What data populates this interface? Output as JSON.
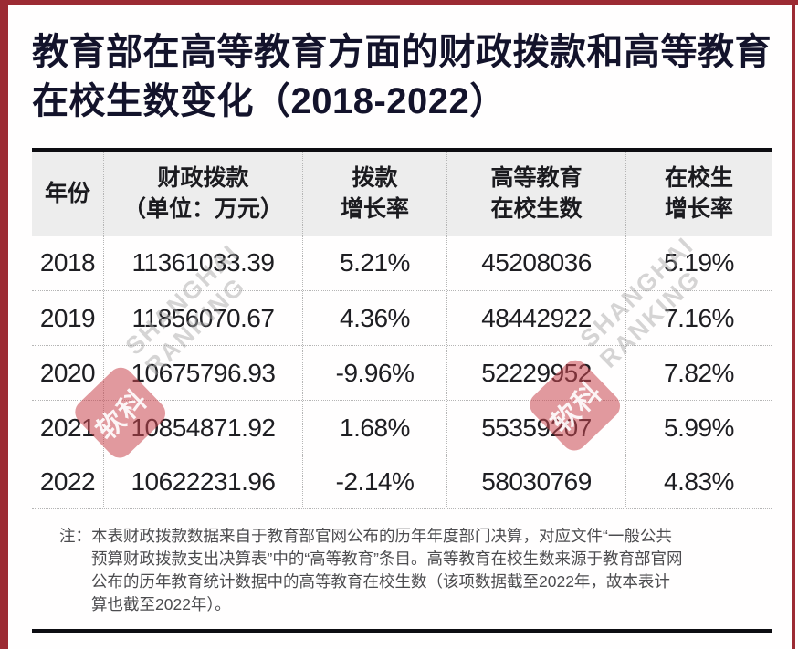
{
  "page": {
    "accent_red": "#9c2b33",
    "title_full": "教育部在高等教育方面的财政拨款和高等教育在校生数变化（2018-2022）",
    "title_line1": "教育部在高等教育方面的财政拨款和高等教育",
    "title_line2": "在校生数变化（2018-2022）"
  },
  "table": {
    "headers": [
      [
        "年份",
        ""
      ],
      [
        "财政拨款",
        "（单位：万元）"
      ],
      [
        "拨款",
        "增长率"
      ],
      [
        "高等教育",
        "在校生数"
      ],
      [
        "在校生",
        "增长率"
      ]
    ],
    "rows": [
      [
        "2018",
        "11361033.39",
        "5.21%",
        "45208036",
        "5.19%"
      ],
      [
        "2019",
        "11856070.67",
        "4.36%",
        "48442922",
        "7.16%"
      ],
      [
        "2020",
        "10675796.93",
        "-9.96%",
        "52229952",
        "7.82%"
      ],
      [
        "2021",
        "10854871.92",
        "1.68%",
        "55359207",
        "5.99%"
      ],
      [
        "2022",
        "10622231.96",
        "-2.14%",
        "58030769",
        "4.83%"
      ]
    ]
  },
  "note": {
    "label": "注：",
    "lines": [
      "本表财政拨款数据来自于教育部官网公布的历年年度部门决算，对应文件“一般公共",
      "预算财政拨款支出决算表”中的“高等教育”条目。高等教育在校生数来源于教育部官网",
      "公布的历年教育统计数据中的高等教育在校生数（该项数据截至2022年，故本表计",
      "算也截至2022年）。"
    ]
  },
  "watermark": {
    "logo_text": "软科",
    "brand_line1": "SHANGHAI",
    "brand_line2": "RANKING"
  },
  "chart_data": {
    "type": "table",
    "title": "教育部在高等教育方面的财政拨款和高等教育在校生数变化（2018-2022）",
    "columns": [
      "年份",
      "财政拨款（单位：万元）",
      "拨款增长率",
      "高等教育在校生数",
      "在校生增长率"
    ],
    "rows": [
      {
        "年份": 2018,
        "财政拨款_万元": 11361033.39,
        "拨款增长率": "5.21%",
        "高等教育在校生数": 45208036,
        "在校生增长率": "5.19%"
      },
      {
        "年份": 2019,
        "财政拨款_万元": 11856070.67,
        "拨款增长率": "4.36%",
        "高等教育在校生数": 48442922,
        "在校生增长率": "7.16%"
      },
      {
        "年份": 2020,
        "财政拨款_万元": 10675796.93,
        "拨款增长率": "-9.96%",
        "高等教育在校生数": 52229952,
        "在校生增长率": "7.82%"
      },
      {
        "年份": 2021,
        "财政拨款_万元": 10854871.92,
        "拨款增长率": "1.68%",
        "高等教育在校生数": 55359207,
        "在校生增长率": "5.99%"
      },
      {
        "年份": 2022,
        "财政拨款_万元": 10622231.96,
        "拨款增长率": "-2.14%",
        "高等教育在校生数": 58030769,
        "在校生增长率": "4.83%"
      }
    ],
    "source_note": "注：本表财政拨款数据来自于教育部官网公布的历年年度部门决算，对应文件“一般公共预算财政拨款支出决算表”中的“高等教育”条目。高等教育在校生数来源于教育部官网公布的历年教育统计数据中的高等教育在校生数（该项数据截至2022年，故本表计算也截至2022年）。"
  }
}
